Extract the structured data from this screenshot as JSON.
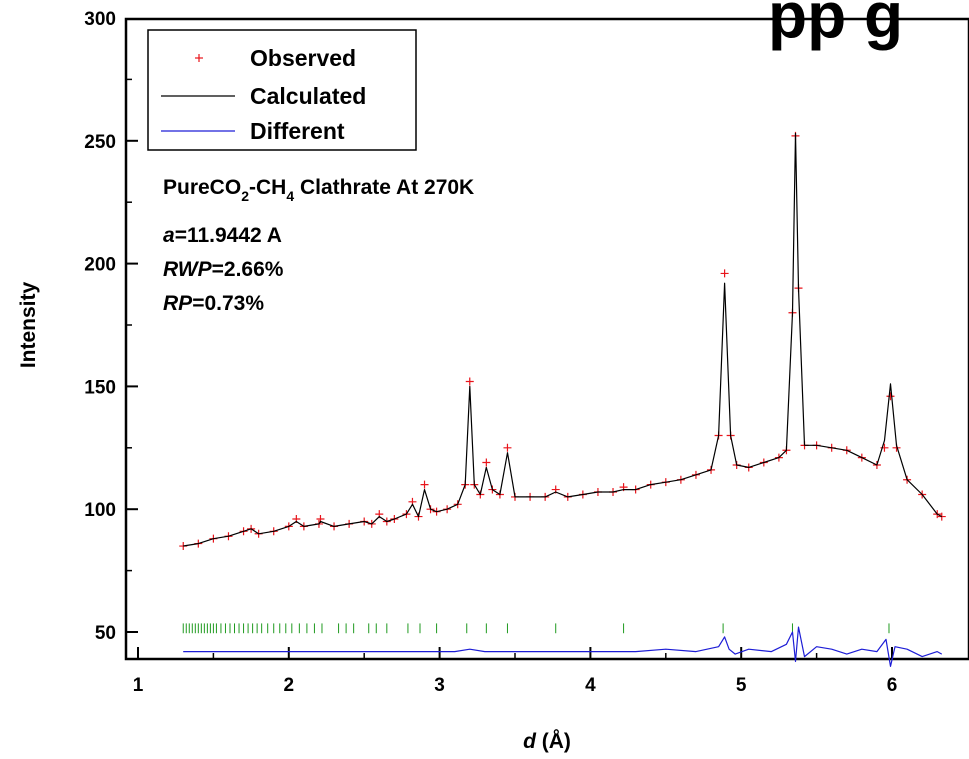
{
  "chart_data": {
    "type": "line",
    "xlabel_italic": "d",
    "xlabel_rest": " (Å)",
    "ylabel": "Intensity",
    "xlim": [
      1,
      6.4
    ],
    "ylim": [
      35,
      300
    ],
    "xticks": [
      1,
      2,
      3,
      4,
      5,
      6
    ],
    "yticks": [
      50,
      100,
      150,
      200,
      250,
      300
    ],
    "grid": false,
    "legend_position": "top-left",
    "annotation": {
      "formula": [
        "PureCO",
        "2",
        "-CH",
        "4",
        " Clathrate At 270K"
      ],
      "lines": [
        {
          "italic": "a",
          "rest": "=11.9442 A"
        },
        {
          "italic": "RWP",
          "rest": "=2.66%"
        },
        {
          "italic": "RP",
          "rest": "=0.73%"
        }
      ]
    },
    "corner_text": "pp g",
    "series": [
      {
        "name": "Observed",
        "marker": "+",
        "color": "#e8141b",
        "x": [
          1.3,
          1.4,
          1.5,
          1.6,
          1.7,
          1.75,
          1.8,
          1.9,
          2.0,
          2.05,
          2.1,
          2.2,
          2.21,
          2.3,
          2.4,
          2.5,
          2.55,
          2.6,
          2.65,
          2.7,
          2.78,
          2.82,
          2.86,
          2.9,
          2.94,
          2.98,
          3.05,
          3.12,
          3.17,
          3.2,
          3.23,
          3.27,
          3.31,
          3.35,
          3.4,
          3.45,
          3.5,
          3.6,
          3.7,
          3.77,
          3.85,
          3.95,
          4.05,
          4.15,
          4.22,
          4.3,
          4.4,
          4.5,
          4.6,
          4.7,
          4.8,
          4.85,
          4.89,
          4.93,
          4.97,
          5.05,
          5.15,
          5.25,
          5.3,
          5.34,
          5.36,
          5.38,
          5.42,
          5.5,
          5.6,
          5.7,
          5.8,
          5.9,
          5.95,
          5.99,
          6.03,
          6.1,
          6.2,
          6.3,
          6.33
        ],
        "y": [
          85,
          86,
          88,
          89,
          91,
          92,
          90,
          91,
          93,
          96,
          93,
          94,
          96,
          93,
          94,
          95,
          94,
          98,
          95,
          96,
          98,
          103,
          97,
          110,
          100,
          99,
          100,
          102,
          110,
          152,
          110,
          106,
          119,
          108,
          106,
          125,
          105,
          105,
          105,
          108,
          105,
          106,
          107,
          107,
          109,
          108,
          110,
          111,
          112,
          114,
          116,
          130,
          196,
          130,
          118,
          117,
          119,
          121,
          124,
          180,
          252,
          190,
          126,
          126,
          125,
          124,
          121,
          118,
          125,
          146,
          125,
          112,
          106,
          98,
          97
        ]
      },
      {
        "name": "Calculated",
        "marker": "none",
        "color": "#000000",
        "x": [
          1.3,
          1.4,
          1.5,
          1.6,
          1.7,
          1.75,
          1.8,
          1.9,
          2.0,
          2.05,
          2.1,
          2.2,
          2.21,
          2.3,
          2.4,
          2.5,
          2.55,
          2.6,
          2.65,
          2.7,
          2.78,
          2.82,
          2.86,
          2.9,
          2.94,
          2.98,
          3.05,
          3.12,
          3.17,
          3.2,
          3.23,
          3.27,
          3.31,
          3.35,
          3.4,
          3.45,
          3.5,
          3.6,
          3.7,
          3.77,
          3.85,
          3.95,
          4.05,
          4.15,
          4.22,
          4.3,
          4.4,
          4.5,
          4.6,
          4.7,
          4.8,
          4.85,
          4.89,
          4.93,
          4.97,
          5.05,
          5.15,
          5.25,
          5.3,
          5.34,
          5.36,
          5.38,
          5.42,
          5.5,
          5.6,
          5.7,
          5.8,
          5.9,
          5.95,
          5.99,
          6.03,
          6.1,
          6.2,
          6.3,
          6.33
        ],
        "y": [
          85,
          86,
          88,
          89,
          91,
          92,
          90,
          91,
          93,
          95,
          93,
          94,
          95,
          93,
          94,
          95,
          94,
          97,
          95,
          96,
          98,
          102,
          97,
          108,
          100,
          99,
          100,
          102,
          110,
          150,
          110,
          106,
          117,
          108,
          106,
          123,
          105,
          105,
          105,
          107,
          105,
          106,
          107,
          107,
          108,
          108,
          110,
          111,
          112,
          114,
          116,
          130,
          192,
          130,
          118,
          117,
          119,
          121,
          124,
          180,
          253,
          190,
          126,
          126,
          125,
          124,
          121,
          118,
          128,
          151,
          126,
          112,
          106,
          98,
          97
        ]
      },
      {
        "name": "Different",
        "marker": "none",
        "color": "#1d1dd6",
        "x": [
          1.3,
          1.5,
          1.7,
          1.9,
          2.1,
          2.3,
          2.5,
          2.7,
          2.9,
          3.1,
          3.2,
          3.3,
          3.5,
          3.7,
          3.9,
          4.1,
          4.3,
          4.5,
          4.7,
          4.85,
          4.89,
          4.92,
          4.96,
          5.05,
          5.2,
          5.3,
          5.34,
          5.36,
          5.38,
          5.42,
          5.5,
          5.6,
          5.7,
          5.8,
          5.9,
          5.96,
          5.99,
          6.02,
          6.1,
          6.2,
          6.3,
          6.33
        ],
        "y": [
          42,
          42,
          42,
          42,
          42,
          42,
          42,
          42,
          42,
          42,
          43,
          42,
          42,
          42,
          42,
          42,
          42,
          43,
          42,
          44,
          48,
          43,
          41,
          43,
          42,
          45,
          50,
          38,
          52,
          40,
          44,
          43,
          41,
          43,
          42,
          47,
          36,
          44,
          43,
          40,
          42,
          41
        ]
      }
    ],
    "reflection_ticks": {
      "color": "#1f9a1f",
      "y_range": [
        49.5,
        53.5
      ],
      "x": [
        1.3,
        1.32,
        1.34,
        1.36,
        1.38,
        1.4,
        1.42,
        1.44,
        1.46,
        1.48,
        1.5,
        1.52,
        1.55,
        1.58,
        1.61,
        1.64,
        1.67,
        1.7,
        1.73,
        1.76,
        1.79,
        1.82,
        1.86,
        1.9,
        1.94,
        1.98,
        2.02,
        2.07,
        2.12,
        2.17,
        2.22,
        2.33,
        2.38,
        2.43,
        2.53,
        2.58,
        2.65,
        2.79,
        2.87,
        2.98,
        3.18,
        3.31,
        3.45,
        3.77,
        4.22,
        4.88,
        5.34,
        5.98
      ]
    }
  }
}
